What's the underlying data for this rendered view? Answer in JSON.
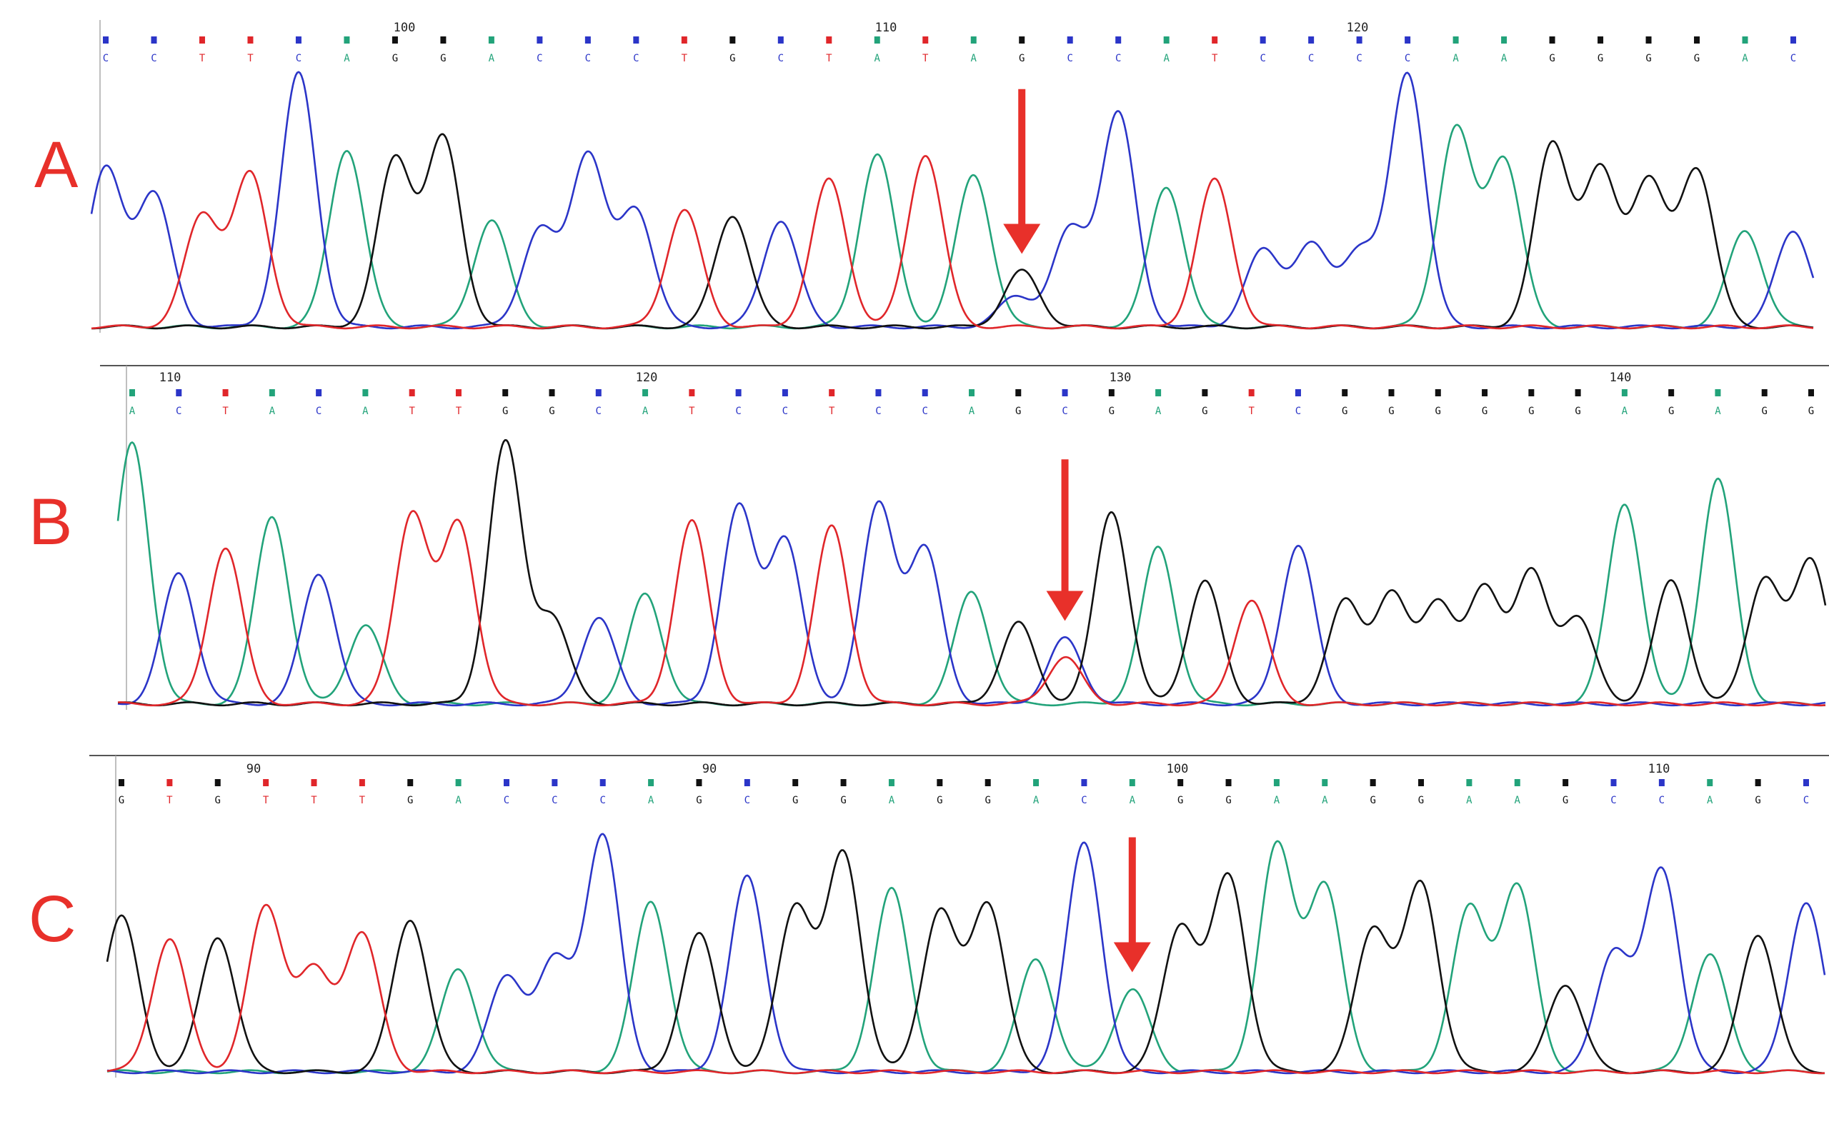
{
  "colors": {
    "A": "#22a37a",
    "C": "#2b35c8",
    "G": "#111111",
    "T": "#e0262a",
    "N": "#9aa0a6",
    "arrow": "#e8302a",
    "label": "#e8302a"
  },
  "chart_data": [
    {
      "type": "line",
      "panel": "A",
      "label": "A",
      "tick_labels": [
        "100",
        "110",
        "120"
      ],
      "bases": [
        "C",
        "C",
        "T",
        "T",
        "C",
        "A",
        "G",
        "G",
        "A",
        "C",
        "C",
        "C",
        "T",
        "G",
        "C",
        "T",
        "A",
        "T",
        "A",
        "G",
        "C",
        "C",
        "A",
        "T",
        "C",
        "C",
        "C",
        "C",
        "A",
        "A",
        "G",
        "G",
        "G",
        "G",
        "A",
        "C"
      ],
      "peak_heights": [
        0.62,
        0.52,
        0.44,
        0.6,
        1.0,
        0.7,
        0.66,
        0.74,
        0.42,
        0.38,
        0.68,
        0.46,
        0.46,
        0.44,
        0.42,
        0.58,
        0.68,
        0.68,
        0.6,
        0.22,
        0.38,
        0.84,
        0.55,
        0.58,
        0.3,
        0.32,
        0.3,
        1.0,
        0.78,
        0.66,
        0.72,
        0.61,
        0.57,
        0.62,
        0.38,
        0.38
      ],
      "arrow_at_base": 19
    },
    {
      "type": "line",
      "panel": "B",
      "label": "B",
      "tick_labels": [
        "110",
        "120",
        "130",
        "140"
      ],
      "bases": [
        "A",
        "C",
        "T",
        "A",
        "C",
        "A",
        "T",
        "T",
        "G",
        "G",
        "C",
        "A",
        "T",
        "C",
        "C",
        "T",
        "C",
        "C",
        "A",
        "G",
        "C",
        "G",
        "A",
        "G",
        "T",
        "C",
        "G",
        "G",
        "G",
        "G",
        "G",
        "G",
        "A",
        "G",
        "A",
        "G",
        "G"
      ],
      "peak_heights": [
        1.0,
        0.5,
        0.6,
        0.72,
        0.5,
        0.3,
        0.73,
        0.69,
        1.0,
        0.33,
        0.33,
        0.42,
        0.7,
        0.75,
        0.63,
        0.68,
        0.76,
        0.59,
        0.43,
        0.31,
        0.25,
        0.74,
        0.6,
        0.47,
        0.4,
        0.61,
        0.39,
        0.42,
        0.39,
        0.44,
        0.5,
        0.33,
        0.77,
        0.47,
        0.86,
        0.48,
        0.55
      ],
      "arrow_at_base": 20
    },
    {
      "type": "line",
      "panel": "C",
      "label": "C",
      "tick_labels": [
        "90",
        "90",
        "100",
        "110"
      ],
      "bases": [
        "G",
        "T",
        "G",
        "T",
        "T",
        "T",
        "G",
        "A",
        "C",
        "C",
        "C",
        "A",
        "G",
        "C",
        "G",
        "G",
        "A",
        "G",
        "G",
        "A",
        "C",
        "A",
        "G",
        "G",
        "A",
        "A",
        "G",
        "G",
        "A",
        "A",
        "G",
        "C",
        "C",
        "A",
        "G",
        "C"
      ],
      "peak_heights": [
        0.62,
        0.53,
        0.54,
        0.66,
        0.4,
        0.55,
        0.61,
        0.41,
        0.38,
        0.44,
        0.94,
        0.68,
        0.55,
        0.78,
        0.66,
        0.87,
        0.73,
        0.64,
        0.67,
        0.45,
        0.92,
        0.33,
        0.58,
        0.78,
        0.9,
        0.74,
        0.57,
        0.75,
        0.65,
        0.74,
        0.35,
        0.48,
        0.81,
        0.47,
        0.55,
        0.68
      ],
      "arrow_at_base": 21
    }
  ]
}
